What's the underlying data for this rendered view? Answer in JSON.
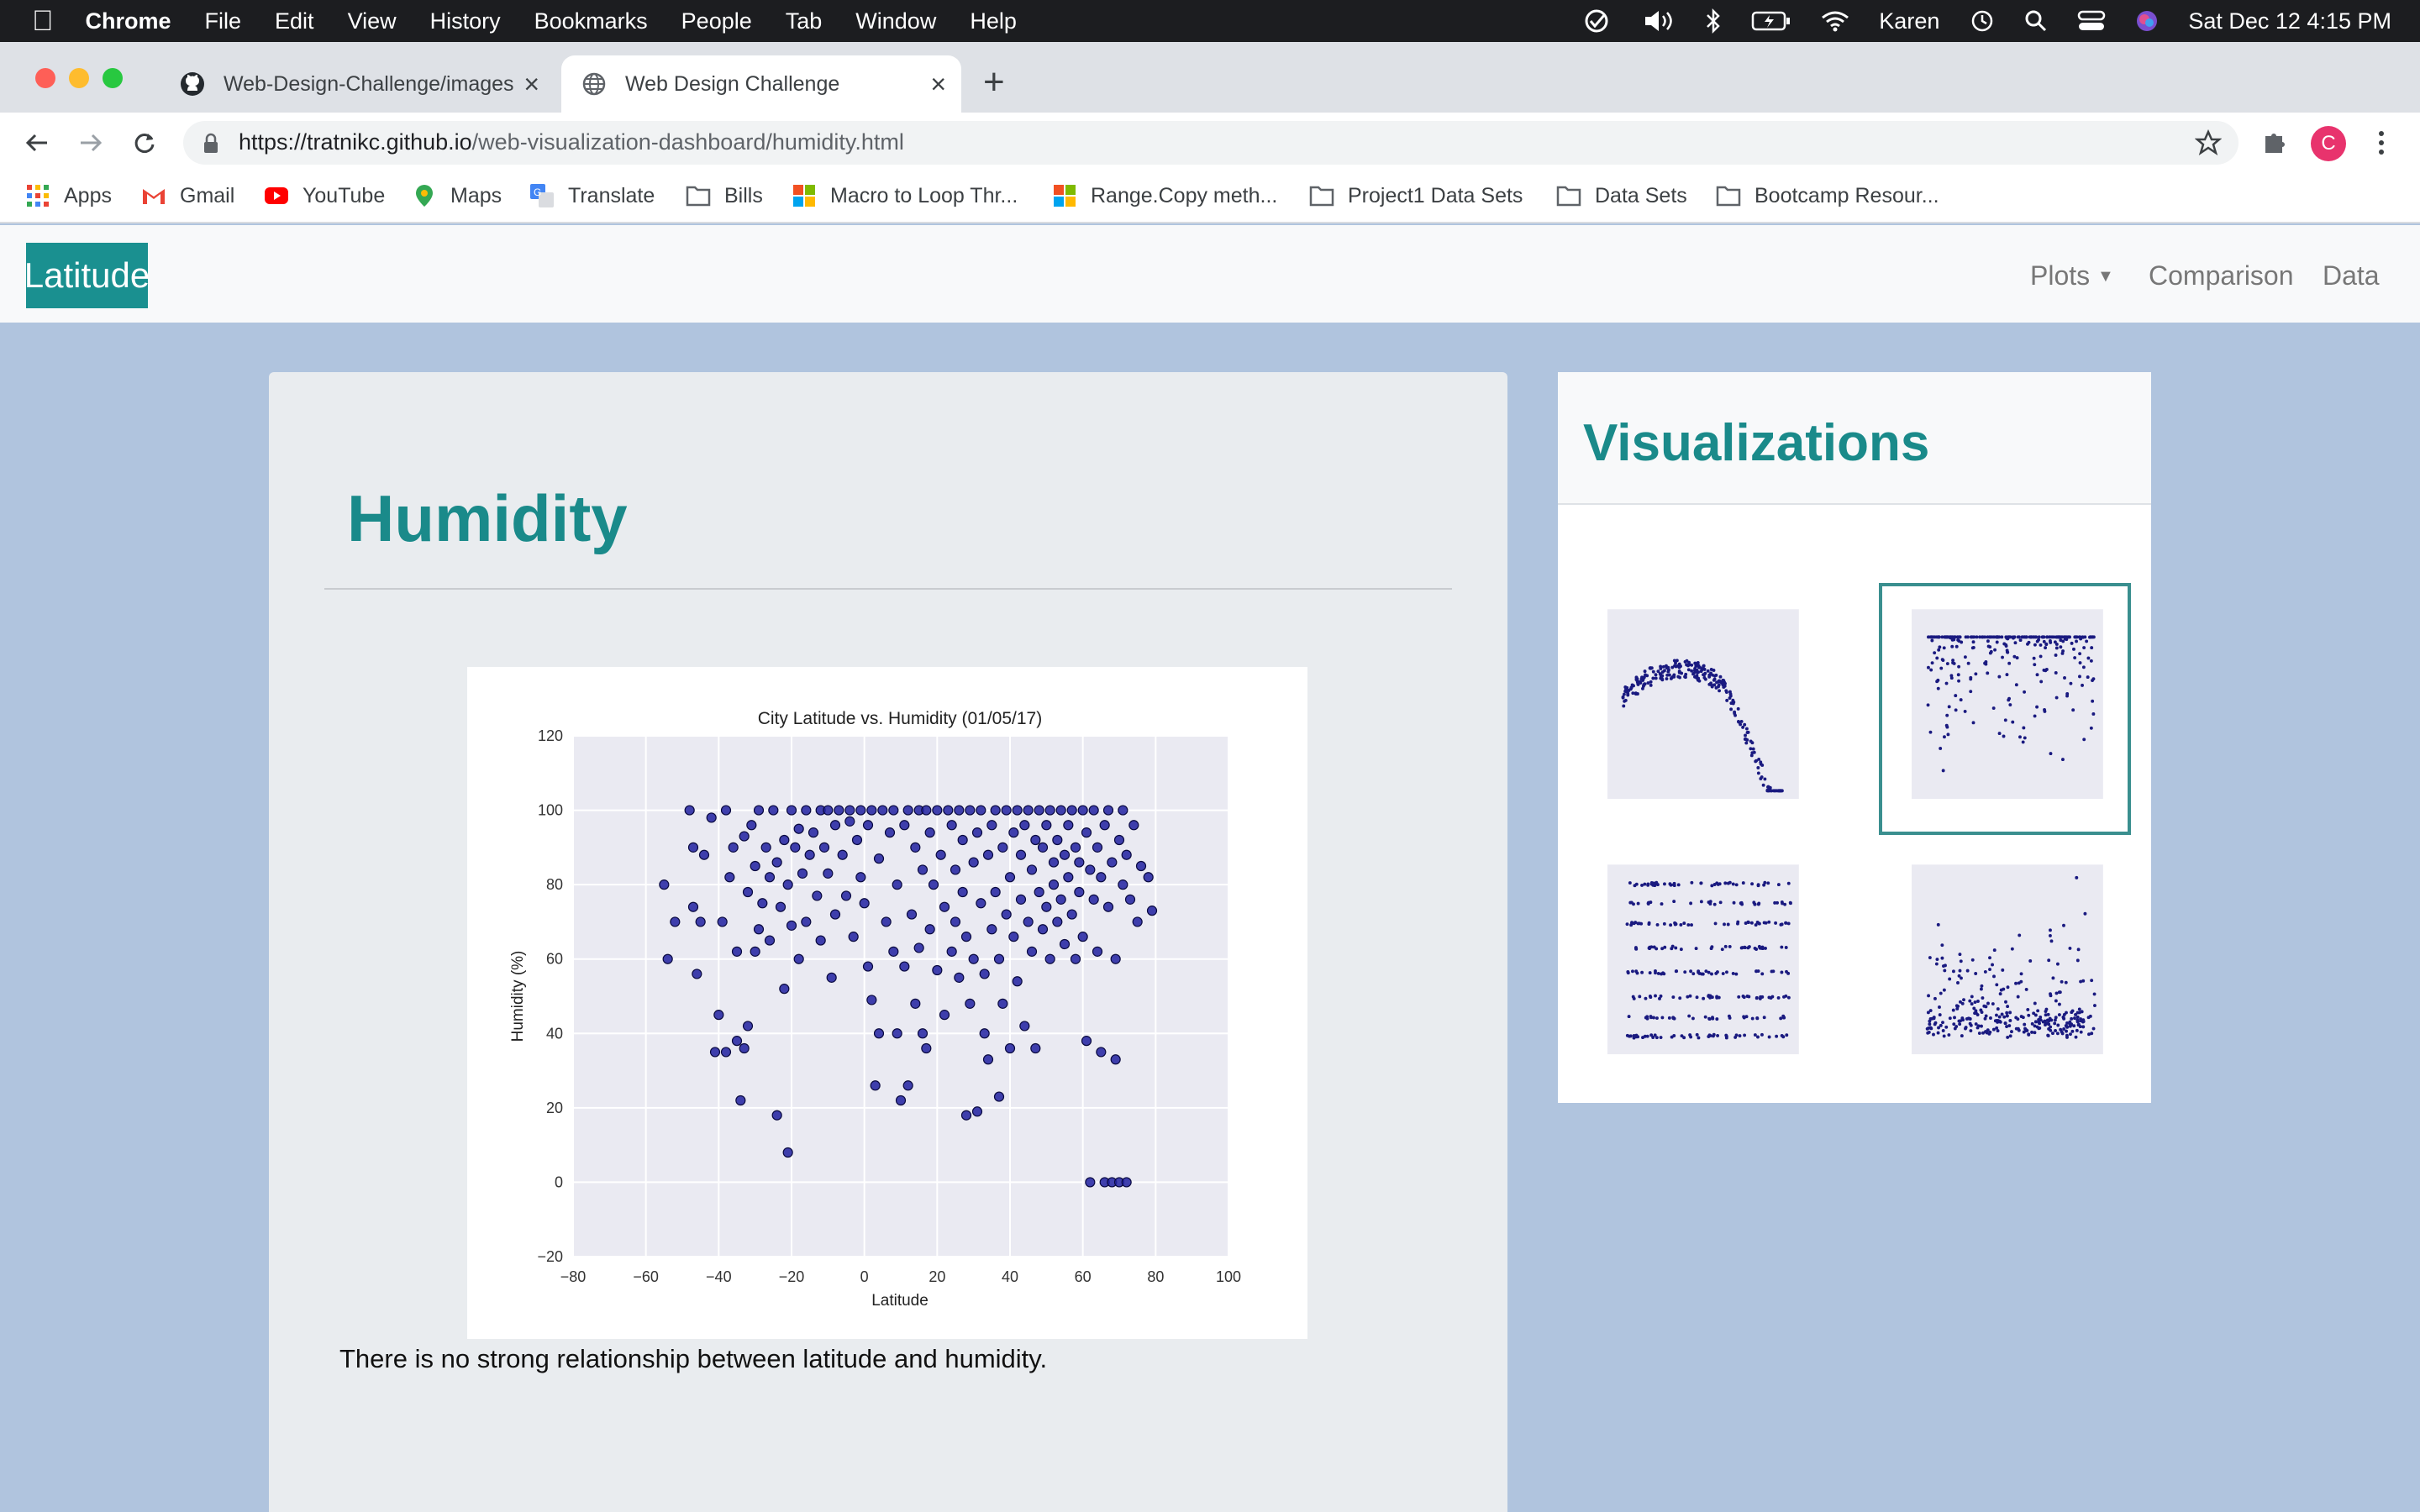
{
  "menubar": {
    "app": "Chrome",
    "items": [
      "File",
      "Edit",
      "View",
      "History",
      "Bookmarks",
      "People",
      "Tab",
      "Window",
      "Help"
    ],
    "user": "Karen",
    "datetime": "Sat Dec 12  4:15 PM"
  },
  "tabs": [
    {
      "title": "Web-Design-Challenge/images",
      "icon": "github-icon"
    },
    {
      "title": "Web Design Challenge",
      "icon": "globe-icon"
    }
  ],
  "address": {
    "host": "https://tratnikc.github.io",
    "path": "/web-visualization-dashboard/humidity.html"
  },
  "profile_initial": "C",
  "bookmarks": [
    "Apps",
    "Gmail",
    "YouTube",
    "Maps",
    "Translate",
    "Bills",
    "Macro to Loop Thr...",
    "Range.Copy meth...",
    "Project1  Data Sets",
    "Data Sets",
    "Bootcamp Resour..."
  ],
  "nav": {
    "brand": "Latitude",
    "links": [
      "Plots",
      "Comparison",
      "Data"
    ]
  },
  "main": {
    "heading": "Humidity",
    "caption": "There is no strong relationship between latitude and humidity."
  },
  "sidebar": {
    "title": "Visualizations"
  },
  "colors": {
    "accent": "#1a8a8a",
    "background": "#b0c4de",
    "marker": "#2020a0"
  },
  "chart_data": [
    {
      "type": "scatter",
      "title": "City Latitude vs. Humidity (01/05/17)",
      "xlabel": "Latitude",
      "ylabel": "Humidity (%)",
      "xlim": [
        -80,
        100
      ],
      "ylim": [
        -20,
        120
      ],
      "xticks": [
        -80,
        -60,
        -40,
        -20,
        0,
        20,
        40,
        60,
        80,
        100
      ],
      "yticks": [
        -20,
        0,
        20,
        40,
        60,
        80,
        100,
        120
      ],
      "grid": true,
      "points": [
        [
          -55,
          80
        ],
        [
          -54,
          60
        ],
        [
          -52,
          70
        ],
        [
          -48,
          100
        ],
        [
          -47,
          90
        ],
        [
          -47,
          74
        ],
        [
          -46,
          56
        ],
        [
          -45,
          70
        ],
        [
          -44,
          88
        ],
        [
          -42,
          98
        ],
        [
          -41,
          35
        ],
        [
          -40,
          45
        ],
        [
          -39,
          70
        ],
        [
          -38,
          100
        ],
        [
          -38,
          35
        ],
        [
          -37,
          82
        ],
        [
          -36,
          90
        ],
        [
          -35,
          38
        ],
        [
          -35,
          62
        ],
        [
          -34,
          22
        ],
        [
          -33,
          93
        ],
        [
          -33,
          36
        ],
        [
          -32,
          42
        ],
        [
          -32,
          78
        ],
        [
          -31,
          96
        ],
        [
          -30,
          85
        ],
        [
          -30,
          62
        ],
        [
          -29,
          100
        ],
        [
          -29,
          68
        ],
        [
          -28,
          75
        ],
        [
          -27,
          90
        ],
        [
          -26,
          65
        ],
        [
          -26,
          82
        ],
        [
          -25,
          100
        ],
        [
          -24,
          18
        ],
        [
          -24,
          86
        ],
        [
          -23,
          74
        ],
        [
          -22,
          92
        ],
        [
          -22,
          52
        ],
        [
          -21,
          80
        ],
        [
          -21,
          8
        ],
        [
          -20,
          100
        ],
        [
          -20,
          69
        ],
        [
          -19,
          90
        ],
        [
          -18,
          95
        ],
        [
          -18,
          60
        ],
        [
          -17,
          83
        ],
        [
          -16,
          100
        ],
        [
          -16,
          70
        ],
        [
          -15,
          88
        ],
        [
          -14,
          94
        ],
        [
          -13,
          77
        ],
        [
          -12,
          100
        ],
        [
          -12,
          65
        ],
        [
          -11,
          90
        ],
        [
          -10,
          83
        ],
        [
          -10,
          100
        ],
        [
          -9,
          55
        ],
        [
          -8,
          96
        ],
        [
          -8,
          72
        ],
        [
          -7,
          100
        ],
        [
          -6,
          88
        ],
        [
          -5,
          77
        ],
        [
          -4,
          97
        ],
        [
          -4,
          100
        ],
        [
          -3,
          66
        ],
        [
          -2,
          92
        ],
        [
          -1,
          100
        ],
        [
          -1,
          82
        ],
        [
          0,
          75
        ],
        [
          1,
          96
        ],
        [
          1,
          58
        ],
        [
          2,
          100
        ],
        [
          2,
          49
        ],
        [
          3,
          26
        ],
        [
          4,
          40
        ],
        [
          4,
          87
        ],
        [
          5,
          100
        ],
        [
          6,
          70
        ],
        [
          7,
          94
        ],
        [
          8,
          62
        ],
        [
          8,
          100
        ],
        [
          9,
          80
        ],
        [
          9,
          40
        ],
        [
          10,
          22
        ],
        [
          11,
          96
        ],
        [
          11,
          58
        ],
        [
          12,
          26
        ],
        [
          12,
          100
        ],
        [
          13,
          72
        ],
        [
          14,
          90
        ],
        [
          14,
          48
        ],
        [
          15,
          100
        ],
        [
          15,
          63
        ],
        [
          16,
          84
        ],
        [
          16,
          40
        ],
        [
          17,
          36
        ],
        [
          17,
          100
        ],
        [
          18,
          94
        ],
        [
          18,
          68
        ],
        [
          19,
          80
        ],
        [
          20,
          57
        ],
        [
          20,
          100
        ],
        [
          21,
          88
        ],
        [
          22,
          74
        ],
        [
          22,
          45
        ],
        [
          23,
          100
        ],
        [
          24,
          62
        ],
        [
          24,
          96
        ],
        [
          25,
          84
        ],
        [
          25,
          70
        ],
        [
          26,
          55
        ],
        [
          26,
          100
        ],
        [
          27,
          92
        ],
        [
          27,
          78
        ],
        [
          28,
          66
        ],
        [
          28,
          18
        ],
        [
          29,
          48
        ],
        [
          29,
          100
        ],
        [
          30,
          86
        ],
        [
          30,
          60
        ],
        [
          31,
          19
        ],
        [
          31,
          94
        ],
        [
          32,
          75
        ],
        [
          32,
          100
        ],
        [
          33,
          40
        ],
        [
          33,
          56
        ],
        [
          34,
          33
        ],
        [
          34,
          88
        ],
        [
          35,
          96
        ],
        [
          35,
          68
        ],
        [
          36,
          100
        ],
        [
          36,
          78
        ],
        [
          37,
          23
        ],
        [
          37,
          60
        ],
        [
          38,
          48
        ],
        [
          38,
          90
        ],
        [
          39,
          100
        ],
        [
          39,
          72
        ],
        [
          40,
          36
        ],
        [
          40,
          82
        ],
        [
          41,
          94
        ],
        [
          41,
          66
        ],
        [
          42,
          100
        ],
        [
          42,
          54
        ],
        [
          43,
          88
        ],
        [
          43,
          76
        ],
        [
          44,
          42
        ],
        [
          44,
          96
        ],
        [
          45,
          100
        ],
        [
          45,
          70
        ],
        [
          46,
          84
        ],
        [
          46,
          62
        ],
        [
          47,
          36
        ],
        [
          47,
          92
        ],
        [
          48,
          100
        ],
        [
          48,
          78
        ],
        [
          49,
          90
        ],
        [
          49,
          68
        ],
        [
          50,
          96
        ],
        [
          50,
          74
        ],
        [
          51,
          100
        ],
        [
          51,
          60
        ],
        [
          52,
          86
        ],
        [
          52,
          80
        ],
        [
          53,
          92
        ],
        [
          53,
          70
        ],
        [
          54,
          100
        ],
        [
          54,
          76
        ],
        [
          55,
          88
        ],
        [
          55,
          64
        ],
        [
          56,
          96
        ],
        [
          56,
          82
        ],
        [
          57,
          100
        ],
        [
          57,
          72
        ],
        [
          58,
          90
        ],
        [
          58,
          60
        ],
        [
          59,
          78
        ],
        [
          59,
          86
        ],
        [
          60,
          100
        ],
        [
          60,
          66
        ],
        [
          61,
          94
        ],
        [
          61,
          38
        ],
        [
          62,
          0
        ],
        [
          62,
          84
        ],
        [
          63,
          76
        ],
        [
          63,
          100
        ],
        [
          64,
          90
        ],
        [
          64,
          62
        ],
        [
          65,
          35
        ],
        [
          65,
          82
        ],
        [
          66,
          0
        ],
        [
          66,
          96
        ],
        [
          67,
          74
        ],
        [
          67,
          100
        ],
        [
          68,
          0
        ],
        [
          68,
          86
        ],
        [
          69,
          60
        ],
        [
          69,
          33
        ],
        [
          70,
          0
        ],
        [
          70,
          92
        ],
        [
          71,
          80
        ],
        [
          71,
          100
        ],
        [
          72,
          0
        ],
        [
          72,
          88
        ],
        [
          73,
          76
        ],
        [
          74,
          96
        ],
        [
          75,
          70
        ],
        [
          76,
          85
        ],
        [
          78,
          82
        ],
        [
          79,
          73
        ]
      ]
    }
  ]
}
